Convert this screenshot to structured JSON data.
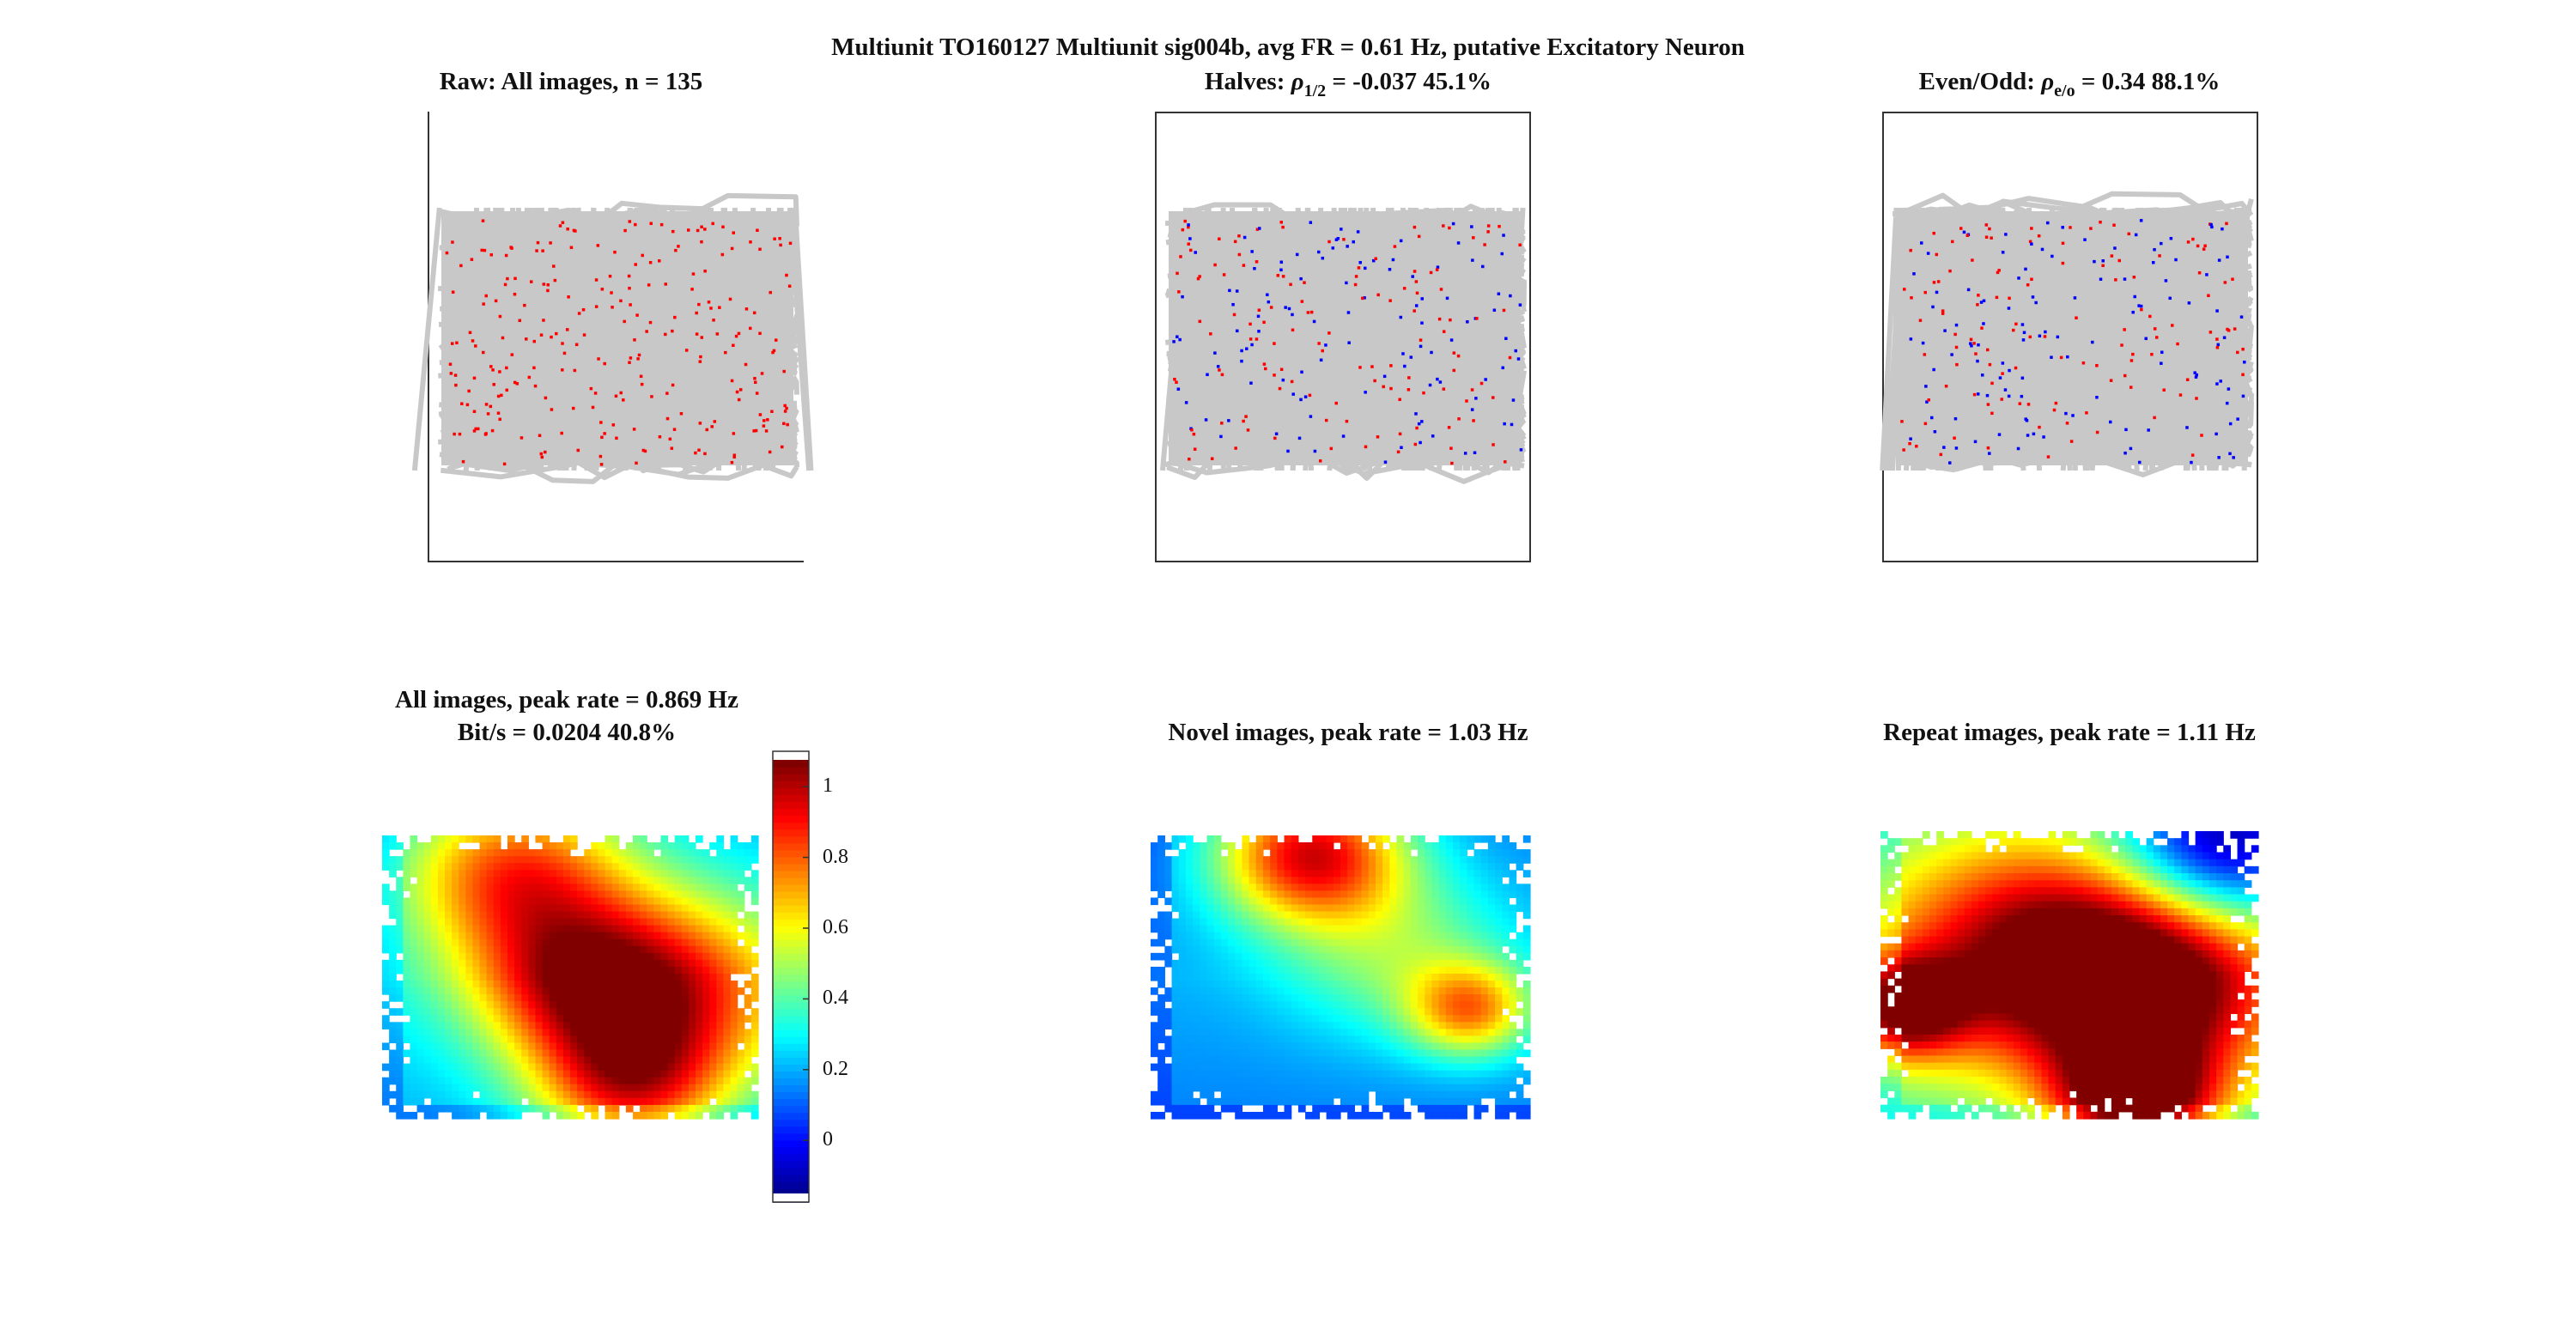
{
  "figure": {
    "suptitle": "Multiunit TO160127 Multiunit sig004b, avg FR = 0.61 Hz, putative Excitatory Neuron"
  },
  "panels": {
    "raw": {
      "title": "Raw: All images, n = 135"
    },
    "halves": {
      "prefix": "Halves: ",
      "rho": "ρ",
      "sub": "1/2",
      "value": " = -0.037 45.1%"
    },
    "evenodd": {
      "prefix": "Even/Odd: ",
      "rho": "ρ",
      "sub": "e/o",
      "value": " = 0.34 88.1%"
    },
    "all": {
      "title1": "All images, peak rate = 0.869 Hz",
      "title2": "Bit/s = 0.0204 40.8%"
    },
    "novel": {
      "title": "Novel images, peak rate = 1.03 Hz"
    },
    "repeat": {
      "title": "Repeat images, peak rate = 1.11 Hz"
    }
  },
  "colors": {
    "trajectory": "#c8c8c8",
    "spike_first": "#ff0000",
    "spike_second": "#0000ff",
    "axis": "#333333"
  },
  "chart_data": [
    {
      "type": "scatter",
      "name": "raw",
      "spike_count": 135,
      "spike_color": "#ff0000"
    },
    {
      "type": "scatter",
      "name": "halves",
      "rho": -0.037,
      "percent": 45.1,
      "series_colors": [
        "#ff0000",
        "#0000ff"
      ]
    },
    {
      "type": "scatter",
      "name": "evenodd",
      "rho": 0.34,
      "percent": 88.1,
      "series_colors": [
        "#ff0000",
        "#0000ff"
      ]
    },
    {
      "type": "heatmap",
      "name": "all",
      "peak_rate_hz": 0.869,
      "bits_per_s": 0.0204,
      "percent": 40.8,
      "colormap": "jet",
      "clim": [
        -0.15,
        1.1
      ],
      "hotspots": [
        {
          "cx": 0.35,
          "cy": 0.12,
          "amp": 0.8,
          "s": 0.22
        },
        {
          "cx": 0.76,
          "cy": 0.56,
          "amp": 0.82,
          "s": 0.26
        },
        {
          "cx": 0.5,
          "cy": 0.52,
          "amp": 0.55,
          "s": 0.2
        },
        {
          "cx": 0.66,
          "cy": 0.9,
          "amp": 0.7,
          "s": 0.18
        }
      ],
      "base": 0.3
    },
    {
      "type": "heatmap",
      "name": "novel",
      "peak_rate_hz": 1.03,
      "colormap": "jet",
      "clim": [
        -0.15,
        1.1
      ],
      "hotspots": [
        {
          "cx": 0.42,
          "cy": 0.05,
          "amp": 1.05,
          "s": 0.18
        },
        {
          "cx": 0.85,
          "cy": 0.62,
          "amp": 0.7,
          "s": 0.12
        },
        {
          "cx": 0.65,
          "cy": 0.4,
          "amp": 0.35,
          "s": 0.22
        }
      ],
      "base": 0.22
    },
    {
      "type": "heatmap",
      "name": "repeat",
      "peak_rate_hz": 1.11,
      "colormap": "jet",
      "clim": [
        -0.15,
        1.1
      ],
      "hotspots": [
        {
          "cx": 0.4,
          "cy": 0.4,
          "amp": 0.75,
          "s": 0.3
        },
        {
          "cx": 0.72,
          "cy": 0.55,
          "amp": 0.85,
          "s": 0.25
        },
        {
          "cx": 0.05,
          "cy": 0.62,
          "amp": 0.85,
          "s": 0.12
        },
        {
          "cx": 0.68,
          "cy": 0.95,
          "amp": 1.05,
          "s": 0.15
        }
      ],
      "base": 0.5,
      "cold": {
        "cx": 0.9,
        "cy": 0.05,
        "s": 0.2
      }
    },
    {
      "type": "colorbar",
      "name": "colorbar",
      "ticks": [
        "1",
        "0.8",
        "0.6",
        "0.4",
        "0.2",
        "0"
      ],
      "tick_values": [
        1,
        0.8,
        0.6,
        0.4,
        0.2,
        0
      ],
      "range": [
        -0.15,
        1.1
      ]
    }
  ]
}
